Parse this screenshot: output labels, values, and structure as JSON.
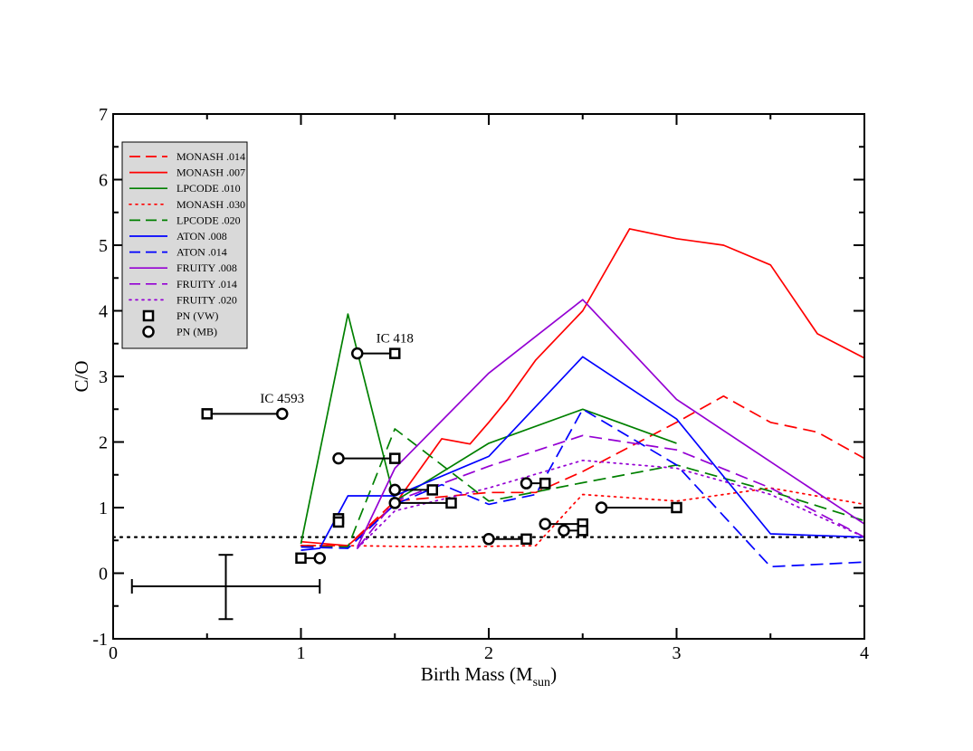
{
  "chart_data": {
    "type": "line",
    "title": "",
    "xlabel": "Birth Mass (M",
    "xlabel_sub": "sun",
    "xlabel_close": ")",
    "ylabel": "C/O",
    "xlim": [
      0,
      4
    ],
    "ylim": [
      -1,
      7
    ],
    "x_ticks": [
      0,
      1,
      2,
      3,
      4
    ],
    "x_tick_labels": [
      "0",
      "1",
      "2",
      "3",
      "4"
    ],
    "y_ticks": [
      -1,
      0,
      1,
      2,
      3,
      4,
      5,
      6,
      7
    ],
    "y_tick_labels": [
      "-1",
      "0",
      "1",
      "2",
      "3",
      "4",
      "5",
      "6",
      "7"
    ],
    "grid": false,
    "legend_position": "top-left",
    "reference_line": {
      "y": 0.55,
      "style": "dotted",
      "color": "#000000"
    },
    "series": [
      {
        "name": "MONASH .014",
        "color": "#ff0000",
        "style": "dashed",
        "x": [
          1.0,
          1.25,
          1.5,
          2.0,
          2.25,
          2.5,
          3.0,
          3.25,
          3.5,
          3.75,
          4.0
        ],
        "y": [
          0.42,
          0.42,
          1.1,
          1.23,
          1.23,
          1.55,
          2.3,
          2.7,
          2.3,
          2.15,
          1.75
        ]
      },
      {
        "name": "MONASH .007",
        "color": "#ff0000",
        "style": "solid",
        "x": [
          1.0,
          1.25,
          1.5,
          1.75,
          1.9,
          2.0,
          2.1,
          2.25,
          2.5,
          2.75,
          3.0,
          3.25,
          3.5,
          3.75,
          4.0
        ],
        "y": [
          0.48,
          0.42,
          1.05,
          2.05,
          1.97,
          2.3,
          2.65,
          3.25,
          4.0,
          5.25,
          5.1,
          5.0,
          4.7,
          3.65,
          3.28
        ]
      },
      {
        "name": "LPCODE .010",
        "color": "#008000",
        "style": "solid",
        "x": [
          1.0,
          1.25,
          1.5,
          2.0,
          2.5,
          3.0
        ],
        "y": [
          0.45,
          3.95,
          1.1,
          1.98,
          2.5,
          1.98
        ]
      },
      {
        "name": "MONASH .030",
        "color": "#ff0000",
        "style": "dotted",
        "x": [
          1.0,
          1.25,
          1.75,
          2.25,
          2.45,
          2.5,
          3.0,
          3.5,
          4.0
        ],
        "y": [
          0.42,
          0.42,
          0.4,
          0.42,
          1.05,
          1.2,
          1.1,
          1.3,
          1.05
        ]
      },
      {
        "name": "LPCODE .020",
        "color": "#008000",
        "style": "dashed",
        "x": [
          1.0,
          1.25,
          1.5,
          2.0,
          2.5,
          3.0,
          3.5,
          4.0
        ],
        "y": [
          0.4,
          0.4,
          2.2,
          1.1,
          1.38,
          1.65,
          1.25,
          0.8
        ]
      },
      {
        "name": "ATON .008",
        "color": "#0000ff",
        "style": "solid",
        "x": [
          1.0,
          1.1,
          1.25,
          1.5,
          2.0,
          2.5,
          3.0,
          3.5,
          4.0
        ],
        "y": [
          0.35,
          0.38,
          1.18,
          1.18,
          1.78,
          3.3,
          2.35,
          0.6,
          0.55
        ]
      },
      {
        "name": "ATON .014",
        "color": "#0000ff",
        "style": "dashed",
        "x": [
          1.0,
          1.25,
          1.5,
          1.75,
          2.0,
          2.25,
          2.5,
          3.0,
          3.5,
          4.0
        ],
        "y": [
          0.4,
          0.38,
          1.05,
          1.35,
          1.05,
          1.2,
          2.5,
          1.65,
          0.1,
          0.17
        ]
      },
      {
        "name": "FRUITY .008",
        "color": "#9400d3",
        "style": "solid",
        "x": [
          1.3,
          1.5,
          2.0,
          2.5,
          3.0,
          3.5,
          4.0
        ],
        "y": [
          0.4,
          1.6,
          3.05,
          4.17,
          2.65,
          1.7,
          0.75
        ]
      },
      {
        "name": "FRUITY .014",
        "color": "#9400d3",
        "style": "dashed",
        "x": [
          1.3,
          1.5,
          2.0,
          2.5,
          3.0,
          3.5,
          4.0
        ],
        "y": [
          0.38,
          1.1,
          1.63,
          2.1,
          1.88,
          1.3,
          0.55
        ]
      },
      {
        "name": "FRUITY .020",
        "color": "#9400d3",
        "style": "dotted",
        "x": [
          1.3,
          1.5,
          2.0,
          2.5,
          3.0,
          3.5,
          4.0
        ],
        "y": [
          0.38,
          0.95,
          1.3,
          1.72,
          1.6,
          1.2,
          0.55
        ]
      }
    ],
    "markers": [
      {
        "name": "PN (VW)",
        "symbol": "square"
      },
      {
        "name": "PN (MB)",
        "symbol": "circle"
      }
    ],
    "pn_pairs": [
      {
        "vw": [
          0.5,
          2.43
        ],
        "mb": [
          0.9,
          2.43
        ]
      },
      {
        "vw": [
          1.5,
          3.35
        ],
        "mb": [
          1.3,
          3.35
        ]
      },
      {
        "vw": [
          1.5,
          1.75
        ],
        "mb": [
          1.2,
          1.75
        ]
      },
      {
        "vw": [
          1.7,
          1.27
        ],
        "mb": [
          1.5,
          1.27
        ]
      },
      {
        "vw": [
          1.8,
          1.07
        ],
        "mb": [
          1.5,
          1.07
        ]
      },
      {
        "vw": [
          2.3,
          1.37
        ],
        "mb": [
          2.2,
          1.37
        ]
      },
      {
        "vw": [
          2.2,
          0.52
        ],
        "mb": [
          2.0,
          0.52
        ]
      },
      {
        "vw": [
          2.5,
          0.75
        ],
        "mb": [
          2.3,
          0.75
        ]
      },
      {
        "vw": [
          2.5,
          0.65
        ],
        "mb": [
          2.4,
          0.65
        ]
      },
      {
        "vw": [
          3.0,
          1.0
        ],
        "mb": [
          2.6,
          1.0
        ]
      },
      {
        "vw": [
          1.0,
          0.23
        ],
        "mb": [
          1.1,
          0.23
        ]
      }
    ],
    "pn_single": [
      {
        "symbol": "square",
        "x": 1.2,
        "y": 0.83
      },
      {
        "symbol": "square",
        "x": 1.2,
        "y": 0.78
      }
    ],
    "annotations": [
      {
        "text": "IC 4593",
        "x": 0.9,
        "y": 2.6
      },
      {
        "text": "IC 418",
        "x": 1.5,
        "y": 3.52
      }
    ],
    "error_bar": {
      "x": 0.6,
      "y": -0.2,
      "x_lo": 0.1,
      "x_hi": 1.1,
      "y_lo": -0.7,
      "y_hi": 0.28
    }
  }
}
